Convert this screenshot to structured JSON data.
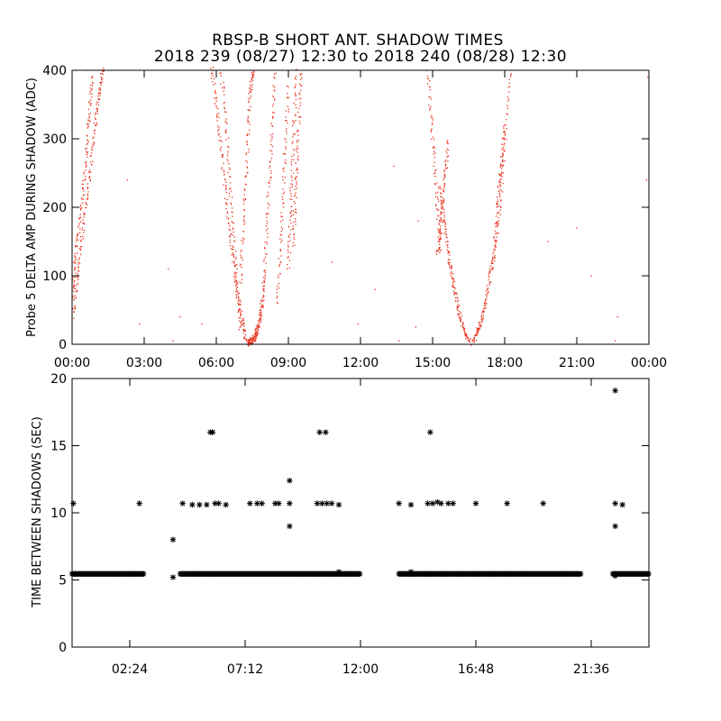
{
  "title_line1": "RBSP-B SHORT ANT. SHADOW TIMES",
  "title_line2": "2018 239 (08/27) 12:30 to 2018 240 (08/28) 12:30",
  "chart_data": [
    {
      "type": "scatter",
      "ylabel": "Probe 5 DELTA AMP DURING SHADOW (ADC)",
      "xlabel": "",
      "xlim": [
        0,
        24
      ],
      "ylim": [
        0,
        400
      ],
      "x_tick_values": [
        0,
        3,
        6,
        9,
        12,
        15,
        18,
        21,
        24
      ],
      "x_tick_labels": [
        "00:00",
        "03:00",
        "06:00",
        "09:00",
        "12:00",
        "15:00",
        "18:00",
        "21:00",
        "00:00"
      ],
      "y_tick_values": [
        0,
        100,
        200,
        300,
        400
      ],
      "y_tick_labels": [
        "0",
        "100",
        "200",
        "300",
        "400"
      ],
      "marker": "dot",
      "color": "#e8321e",
      "curves": [
        {
          "x": [
            0.05,
            0.25,
            0.5,
            0.75,
            0.95,
            1.15,
            1.3
          ],
          "y": [
            40,
            110,
            180,
            250,
            320,
            370,
            405
          ]
        },
        {
          "x": [
            0.0,
            0.15,
            0.35,
            0.55,
            0.7,
            0.85
          ],
          "y": [
            70,
            130,
            190,
            260,
            330,
            395
          ]
        },
        {
          "x": [
            5.8,
            6.05,
            6.3,
            6.55,
            6.8,
            7.05,
            7.25
          ],
          "y": [
            405,
            330,
            250,
            170,
            100,
            40,
            5
          ]
        },
        {
          "x": [
            6.2,
            6.45,
            6.65,
            6.85,
            7.0
          ],
          "y": [
            400,
            300,
            190,
            90,
            20
          ]
        },
        {
          "x": [
            7.3,
            7.45,
            7.6,
            7.7,
            7.8,
            7.9,
            8.0
          ],
          "y": [
            2,
            5,
            10,
            20,
            35,
            60,
            100
          ]
        },
        {
          "x": [
            7.0,
            7.15,
            7.3,
            7.4,
            7.55
          ],
          "y": [
            90,
            190,
            290,
            370,
            400
          ]
        },
        {
          "x": [
            8.0,
            8.15,
            8.3,
            8.45
          ],
          "y": [
            100,
            200,
            300,
            400
          ]
        },
        {
          "x": [
            8.55,
            8.7,
            8.85,
            9.0
          ],
          "y": [
            60,
            160,
            270,
            380
          ]
        },
        {
          "x": [
            9.0,
            9.1,
            9.2,
            9.35
          ],
          "y": [
            110,
            200,
            300,
            400
          ]
        },
        {
          "x": [
            9.55,
            9.4,
            9.3,
            9.2
          ],
          "y": [
            400,
            300,
            220,
            140
          ]
        },
        {
          "x": [
            14.8,
            15.0,
            15.2,
            15.35
          ],
          "y": [
            400,
            300,
            200,
            130
          ]
        },
        {
          "x": [
            15.3,
            15.5,
            15.7,
            15.9,
            16.1,
            16.3,
            16.55
          ],
          "y": [
            230,
            170,
            120,
            80,
            45,
            20,
            3
          ]
        },
        {
          "x": [
            15.2,
            15.35,
            15.5,
            15.65
          ],
          "y": [
            130,
            180,
            240,
            300
          ]
        },
        {
          "x": [
            16.7,
            16.9,
            17.1,
            17.3,
            17.55,
            17.8,
            18.0,
            18.25
          ],
          "y": [
            3,
            20,
            45,
            80,
            130,
            200,
            290,
            400
          ]
        },
        {
          "x": [
            17.5,
            17.7,
            17.85,
            18.0
          ],
          "y": [
            110,
            200,
            260,
            320
          ]
        }
      ],
      "isolated_points": [
        {
          "x": 0.15,
          "y": 400
        },
        {
          "x": 0.65,
          "y": 400
        },
        {
          "x": 2.3,
          "y": 240
        },
        {
          "x": 2.8,
          "y": 30
        },
        {
          "x": 4.0,
          "y": 110
        },
        {
          "x": 4.5,
          "y": 40
        },
        {
          "x": 4.2,
          "y": 5
        },
        {
          "x": 5.4,
          "y": 30
        },
        {
          "x": 10.8,
          "y": 120
        },
        {
          "x": 11.9,
          "y": 30
        },
        {
          "x": 12.6,
          "y": 80
        },
        {
          "x": 13.6,
          "y": 5
        },
        {
          "x": 14.3,
          "y": 25
        },
        {
          "x": 14.4,
          "y": 180
        },
        {
          "x": 19.8,
          "y": 150
        },
        {
          "x": 21.0,
          "y": 170
        },
        {
          "x": 21.6,
          "y": 100
        },
        {
          "x": 22.6,
          "y": 5
        },
        {
          "x": 22.7,
          "y": 40
        },
        {
          "x": 23.9,
          "y": 240
        },
        {
          "x": 23.95,
          "y": 390
        },
        {
          "x": 13.4,
          "y": 260
        }
      ]
    },
    {
      "type": "scatter",
      "ylabel": "TIME BETWEEN SHADOWS (SEC)",
      "xlabel": "",
      "xlim": [
        0,
        24
      ],
      "ylim": [
        0,
        20
      ],
      "x_tick_values": [
        2.4,
        7.2,
        12.0,
        16.8,
        21.6
      ],
      "x_tick_labels": [
        "02:24",
        "07:12",
        "12:00",
        "16:48",
        "21:36"
      ],
      "y_tick_values": [
        0,
        5,
        10,
        15,
        20
      ],
      "y_tick_labels": [
        "0",
        "5",
        "10",
        "15",
        "20"
      ],
      "marker": "asterisk",
      "color": "#000000",
      "baseline": {
        "y": 5.45,
        "segments": [
          [
            0.0,
            3.0
          ],
          [
            4.5,
            12.0
          ],
          [
            13.6,
            21.2
          ],
          [
            22.5,
            24.0
          ]
        ]
      },
      "points": [
        {
          "x": 0.05,
          "y": 10.7
        },
        {
          "x": 2.8,
          "y": 10.7
        },
        {
          "x": 4.2,
          "y": 8.0
        },
        {
          "x": 4.2,
          "y": 5.2
        },
        {
          "x": 4.6,
          "y": 10.7
        },
        {
          "x": 5.0,
          "y": 10.6
        },
        {
          "x": 5.3,
          "y": 10.6
        },
        {
          "x": 5.6,
          "y": 10.6
        },
        {
          "x": 5.75,
          "y": 16.0
        },
        {
          "x": 5.85,
          "y": 16.0
        },
        {
          "x": 5.95,
          "y": 10.7
        },
        {
          "x": 6.1,
          "y": 10.7
        },
        {
          "x": 6.4,
          "y": 10.6
        },
        {
          "x": 7.4,
          "y": 10.7
        },
        {
          "x": 7.7,
          "y": 10.7
        },
        {
          "x": 7.9,
          "y": 10.7
        },
        {
          "x": 8.45,
          "y": 10.7
        },
        {
          "x": 8.6,
          "y": 10.7
        },
        {
          "x": 9.05,
          "y": 10.7
        },
        {
          "x": 9.05,
          "y": 12.4
        },
        {
          "x": 9.05,
          "y": 9.0
        },
        {
          "x": 10.2,
          "y": 10.7
        },
        {
          "x": 10.4,
          "y": 10.7
        },
        {
          "x": 10.6,
          "y": 10.7
        },
        {
          "x": 10.3,
          "y": 16.0
        },
        {
          "x": 10.55,
          "y": 16.0
        },
        {
          "x": 10.8,
          "y": 10.7
        },
        {
          "x": 11.1,
          "y": 10.6
        },
        {
          "x": 11.1,
          "y": 5.6
        },
        {
          "x": 13.6,
          "y": 10.7
        },
        {
          "x": 14.1,
          "y": 10.6
        },
        {
          "x": 14.1,
          "y": 5.6
        },
        {
          "x": 14.9,
          "y": 16.0
        },
        {
          "x": 14.8,
          "y": 10.7
        },
        {
          "x": 15.0,
          "y": 10.7
        },
        {
          "x": 15.2,
          "y": 10.8
        },
        {
          "x": 15.35,
          "y": 10.7
        },
        {
          "x": 15.65,
          "y": 10.7
        },
        {
          "x": 15.85,
          "y": 10.7
        },
        {
          "x": 16.8,
          "y": 10.7
        },
        {
          "x": 18.1,
          "y": 10.7
        },
        {
          "x": 19.6,
          "y": 10.7
        },
        {
          "x": 22.6,
          "y": 19.1
        },
        {
          "x": 22.6,
          "y": 10.7
        },
        {
          "x": 22.6,
          "y": 9.0
        },
        {
          "x": 22.9,
          "y": 10.6
        },
        {
          "x": 22.6,
          "y": 5.3
        }
      ]
    }
  ]
}
